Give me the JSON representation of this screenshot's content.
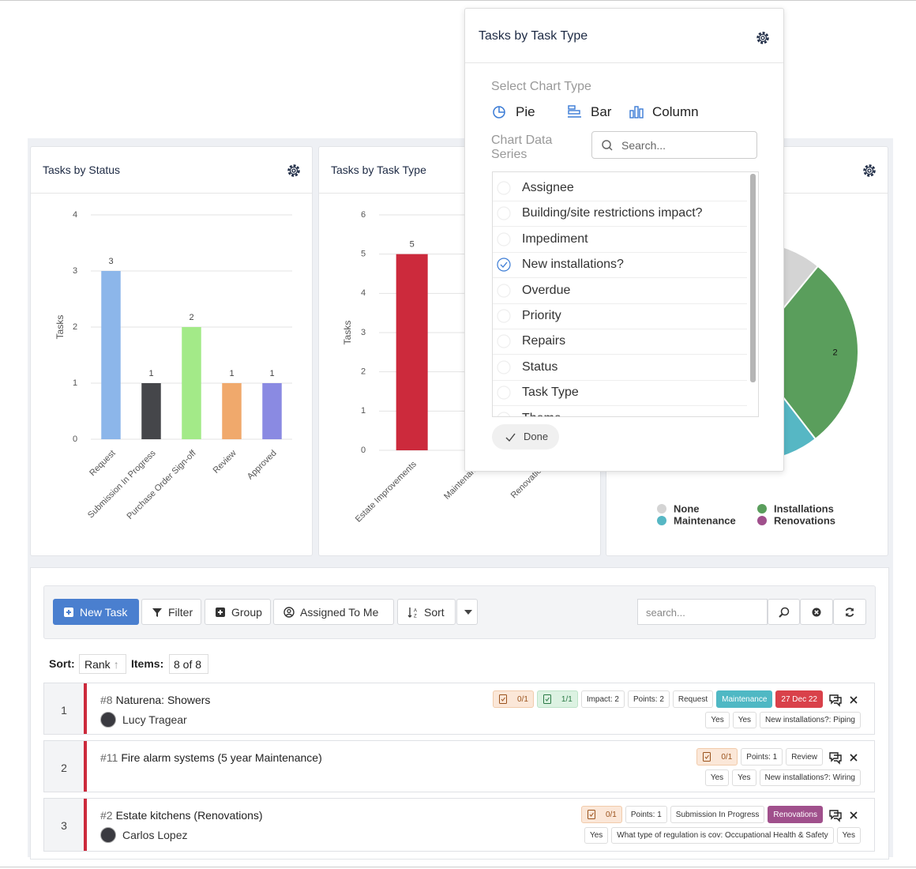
{
  "chart_data": [
    {
      "type": "bar",
      "title": "Tasks by Status",
      "y_label": "Tasks",
      "categories": [
        "Request",
        "Submission In Progress",
        "Purchase Order Sign-off",
        "Review",
        "Approved"
      ],
      "values": [
        3,
        1,
        2,
        1,
        1
      ],
      "colors": [
        "#8cb6ea",
        "#45464a",
        "#a3ea88",
        "#f0a96c",
        "#8a8ae2"
      ],
      "ylim": [
        0,
        4
      ],
      "yticks": [
        0,
        1,
        2,
        3,
        4
      ],
      "grid": true
    },
    {
      "type": "bar",
      "title": "Tasks by Task Type",
      "y_label": "Tasks",
      "categories": [
        "Estate Improvements",
        "Maintenance",
        "Renovations"
      ],
      "values": [
        5,
        null,
        null
      ],
      "colors": [
        "#cc2a3c",
        "#cc2a3c",
        "#cc2a3c"
      ],
      "ylim": [
        0,
        6
      ],
      "yticks": [
        0,
        1,
        2,
        3,
        4,
        5,
        6
      ],
      "grid": true
    },
    {
      "type": "pie",
      "categories": [
        "None",
        "Installations",
        "Maintenance",
        "Renovations"
      ],
      "values": [
        1,
        2,
        2,
        2
      ],
      "colors": [
        "#d4d4d4",
        "#5a9e5c",
        "#56b7c4",
        "#a0508c"
      ]
    }
  ],
  "popup": {
    "title": "Tasks by Task Type",
    "chart_type_label": "Select Chart Type",
    "chart_types": [
      "Pie",
      "Bar",
      "Column"
    ],
    "series_label": "Chart Data Series",
    "search_placeholder": "Search...",
    "series_options": [
      "Assignee",
      "Building/site restrictions impact?",
      "Impediment",
      "New installations?",
      "Overdue",
      "Priority",
      "Repairs",
      "Status",
      "Task Type",
      "Theme"
    ],
    "checked_index": 3,
    "done": "Done"
  },
  "toolbar": {
    "buttons": [
      "New Task",
      "Filter",
      "Group",
      "Assigned To Me",
      "Sort"
    ],
    "search_placeholder": "search..."
  },
  "sort_bar": {
    "sort_label": "Sort:",
    "sort_value": "Rank",
    "items_label": "Items:",
    "items_value": "8 of 8"
  },
  "tasks": [
    {
      "rank": 1,
      "id": "#8",
      "name": "Naturena: Showers",
      "assignee": "Lucy Tragear",
      "tags": [
        {
          "text": "0/1",
          "style": "prog-orange"
        },
        {
          "text": "1/1",
          "style": "prog-green"
        },
        {
          "text": "Impact: 2",
          "style": "plain"
        },
        {
          "text": "Points: 2",
          "style": "plain"
        },
        {
          "text": "Request",
          "style": "plain"
        },
        {
          "text": "Maintenance",
          "style": "teal"
        },
        {
          "text": "27 Dec 22",
          "style": "red"
        }
      ],
      "fields": [
        "Yes",
        "Yes",
        "New installations?: Piping"
      ]
    },
    {
      "rank": 2,
      "id": "#11",
      "name": "Fire alarm systems (5 year Maintenance)",
      "assignee": null,
      "tags": [
        {
          "text": "0/1",
          "style": "prog-orange"
        },
        {
          "text": "Points: 1",
          "style": "plain"
        },
        {
          "text": "Review",
          "style": "plain"
        }
      ],
      "fields": [
        "Yes",
        "Yes",
        "New installations?: Wiring"
      ]
    },
    {
      "rank": 3,
      "id": "#2",
      "name": "Estate kitchens (Renovations)",
      "assignee": "Carlos Lopez",
      "tags": [
        {
          "text": "0/1",
          "style": "prog-orange"
        },
        {
          "text": "Points: 1",
          "style": "plain"
        },
        {
          "text": "Submission In Progress",
          "style": "plain"
        },
        {
          "text": "Renovations",
          "style": "purple"
        }
      ],
      "fields": [
        "Yes",
        "What type of regulation is cov: Occupational Health & Safety",
        "Yes"
      ]
    }
  ]
}
